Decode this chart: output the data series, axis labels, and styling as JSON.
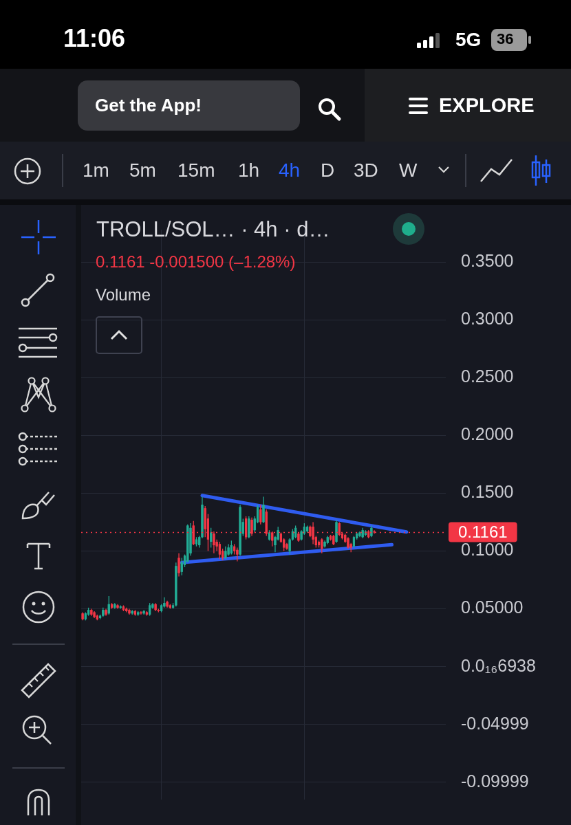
{
  "chart_data": {
    "type": "candlestick",
    "title": "TROLL/SOL… · 4h · d…",
    "annotations": [
      "11:06",
      "5G",
      "36",
      "Get the App!",
      "EXPLORE",
      "1m",
      "5m",
      "15m",
      "1h",
      "4h",
      "D",
      "3D",
      "W",
      "0.1161  -0.001500 (–1.28%)",
      "Volume"
    ],
    "categories": [
      null,
      null,
      null,
      null,
      null,
      null,
      null,
      null,
      null,
      null,
      null,
      null,
      null,
      null,
      null,
      null,
      null,
      null,
      null,
      null,
      null,
      null,
      null,
      null,
      null,
      null,
      null,
      null,
      null,
      null,
      null,
      null,
      null,
      null,
      null,
      null,
      null,
      null,
      null,
      null,
      null,
      null,
      null,
      null,
      null,
      null,
      null,
      null,
      null,
      null,
      null,
      null,
      null,
      null,
      null,
      null,
      null,
      null,
      null,
      null,
      null,
      null,
      null,
      null,
      null,
      null,
      null,
      null,
      null,
      null,
      null,
      null,
      null,
      null,
      null,
      null,
      null,
      null,
      null,
      null,
      null,
      null,
      null,
      null,
      null,
      null,
      null,
      null,
      null,
      null,
      null,
      null,
      null,
      null,
      null,
      null,
      null,
      null,
      null,
      null,
      null,
      null,
      null,
      null,
      null,
      null,
      null,
      null,
      null,
      null,
      null,
      null,
      null,
      null,
      null,
      null,
      null,
      null,
      null,
      null,
      null,
      null,
      null,
      null,
      null
    ],
    "ohlc": [
      [
        0.046,
        0.047,
        0.04,
        0.041
      ],
      [
        0.041,
        0.047,
        0.04,
        0.046
      ],
      [
        0.045,
        0.051,
        0.044,
        0.049
      ],
      [
        0.049,
        0.05,
        0.044,
        0.045
      ],
      [
        0.047,
        0.048,
        0.042,
        0.043
      ],
      [
        0.044,
        0.045,
        0.04,
        0.041
      ],
      [
        0.042,
        0.045,
        0.041,
        0.044
      ],
      [
        0.044,
        0.051,
        0.043,
        0.049
      ],
      [
        0.049,
        0.05,
        0.044,
        0.045
      ],
      [
        0.046,
        0.061,
        0.045,
        0.054
      ],
      [
        0.054,
        0.055,
        0.05,
        0.051
      ],
      [
        0.051,
        0.055,
        0.05,
        0.054
      ],
      [
        0.053,
        0.054,
        0.05,
        0.051
      ],
      [
        0.051,
        0.053,
        0.05,
        0.052
      ],
      [
        0.052,
        0.053,
        0.048,
        0.049
      ],
      [
        0.05,
        0.051,
        0.047,
        0.048
      ],
      [
        0.049,
        0.05,
        0.045,
        0.046
      ],
      [
        0.046,
        0.049,
        0.045,
        0.048
      ],
      [
        0.048,
        0.049,
        0.044,
        0.045
      ],
      [
        0.045,
        0.048,
        0.044,
        0.047
      ],
      [
        0.047,
        0.048,
        0.045,
        0.046
      ],
      [
        0.046,
        0.049,
        0.045,
        0.048
      ],
      [
        0.047,
        0.048,
        0.044,
        0.045
      ],
      [
        0.045,
        0.055,
        0.044,
        0.053
      ],
      [
        0.051,
        0.055,
        0.05,
        0.054
      ],
      [
        0.054,
        0.055,
        0.048,
        0.049
      ],
      [
        0.049,
        0.05,
        0.047,
        0.048
      ],
      [
        0.048,
        0.054,
        0.047,
        0.053
      ],
      [
        0.052,
        0.06,
        0.051,
        0.055
      ],
      [
        0.056,
        0.057,
        0.051,
        0.052
      ],
      [
        0.053,
        0.054,
        0.05,
        0.051
      ],
      [
        0.051,
        0.055,
        0.05,
        0.053
      ],
      [
        0.053,
        0.09,
        0.052,
        0.087
      ],
      [
        0.094,
        0.098,
        0.078,
        0.081
      ],
      [
        0.082,
        0.094,
        0.079,
        0.09
      ],
      [
        0.088,
        0.097,
        0.086,
        0.096
      ],
      [
        0.091,
        0.123,
        0.09,
        0.122
      ],
      [
        0.098,
        0.124,
        0.096,
        0.12
      ],
      [
        0.122,
        0.126,
        0.105,
        0.106
      ],
      [
        0.106,
        0.112,
        0.104,
        0.11
      ],
      [
        0.105,
        0.113,
        0.103,
        0.112
      ],
      [
        0.112,
        0.147,
        0.111,
        0.14
      ],
      [
        0.137,
        0.139,
        0.112,
        0.119
      ],
      [
        0.128,
        0.132,
        0.1,
        0.11
      ],
      [
        0.108,
        0.12,
        0.103,
        0.116
      ],
      [
        0.115,
        0.117,
        0.098,
        0.105
      ],
      [
        0.108,
        0.11,
        0.1,
        0.104
      ],
      [
        0.106,
        0.108,
        0.093,
        0.097
      ],
      [
        0.1,
        0.102,
        0.092,
        0.094
      ],
      [
        0.094,
        0.104,
        0.093,
        0.1
      ],
      [
        0.097,
        0.106,
        0.096,
        0.103
      ],
      [
        0.098,
        0.109,
        0.097,
        0.105
      ],
      [
        0.104,
        0.106,
        0.097,
        0.1
      ],
      [
        0.101,
        0.103,
        0.091,
        0.097
      ],
      [
        0.097,
        0.14,
        0.096,
        0.138
      ],
      [
        0.115,
        0.128,
        0.113,
        0.125
      ],
      [
        0.128,
        0.13,
        0.11,
        0.112
      ],
      [
        0.112,
        0.13,
        0.111,
        0.128
      ],
      [
        0.127,
        0.129,
        0.113,
        0.115
      ],
      [
        0.118,
        0.13,
        0.116,
        0.128
      ],
      [
        0.125,
        0.14,
        0.124,
        0.138
      ],
      [
        0.136,
        0.14,
        0.123,
        0.125
      ],
      [
        0.125,
        0.147,
        0.124,
        0.14
      ],
      [
        0.134,
        0.136,
        0.113,
        0.115
      ],
      [
        0.11,
        0.118,
        0.109,
        0.116
      ],
      [
        0.116,
        0.117,
        0.104,
        0.109
      ],
      [
        0.105,
        0.113,
        0.099,
        0.112
      ],
      [
        0.11,
        0.121,
        0.109,
        0.118
      ],
      [
        0.115,
        0.116,
        0.107,
        0.108
      ],
      [
        0.11,
        0.111,
        0.1,
        0.103
      ],
      [
        0.106,
        0.107,
        0.101,
        0.102
      ],
      [
        0.1,
        0.111,
        0.097,
        0.11
      ],
      [
        0.11,
        0.119,
        0.109,
        0.117
      ],
      [
        0.112,
        0.122,
        0.111,
        0.12
      ],
      [
        0.115,
        0.116,
        0.108,
        0.109
      ],
      [
        0.11,
        0.118,
        0.109,
        0.117
      ],
      [
        0.115,
        0.124,
        0.114,
        0.121
      ],
      [
        0.117,
        0.122,
        0.116,
        0.121
      ],
      [
        0.121,
        0.122,
        0.112,
        0.113
      ],
      [
        0.121,
        0.125,
        0.106,
        0.11
      ],
      [
        0.112,
        0.113,
        0.103,
        0.105
      ],
      [
        0.108,
        0.109,
        0.103,
        0.105
      ],
      [
        0.11,
        0.111,
        0.098,
        0.102
      ],
      [
        0.104,
        0.109,
        0.103,
        0.108
      ],
      [
        0.107,
        0.113,
        0.106,
        0.112
      ],
      [
        0.113,
        0.114,
        0.109,
        0.11
      ],
      [
        0.113,
        0.114,
        0.105,
        0.106
      ],
      [
        0.108,
        0.127,
        0.107,
        0.125
      ],
      [
        0.124,
        0.125,
        0.113,
        0.114
      ],
      [
        0.115,
        0.116,
        0.11,
        0.111
      ],
      [
        0.114,
        0.115,
        0.107,
        0.108
      ],
      [
        0.111,
        0.112,
        0.102,
        0.103
      ],
      [
        0.106,
        0.107,
        0.099,
        0.103
      ],
      [
        0.104,
        0.113,
        0.103,
        0.112
      ],
      [
        0.111,
        0.116,
        0.11,
        0.115
      ],
      [
        0.113,
        0.117,
        0.112,
        0.116
      ],
      [
        0.112,
        0.12,
        0.111,
        0.118
      ],
      [
        0.114,
        0.118,
        0.113,
        0.117
      ],
      [
        0.117,
        0.118,
        0.111,
        0.112
      ],
      [
        0.113,
        0.122,
        0.112,
        0.12
      ],
      [
        0.117,
        0.118,
        0.115,
        0.1161
      ],
      null,
      null,
      null,
      null,
      null,
      null,
      null,
      null,
      null,
      null,
      null,
      null,
      null,
      null,
      null,
      null,
      null,
      null,
      null,
      null,
      null,
      null,
      null,
      null
    ],
    "series": [
      {
        "type": "line",
        "color": "#2f5cf0",
        "values": [
          null,
          null,
          null,
          null,
          null,
          null,
          null,
          null,
          null,
          null,
          null,
          null,
          null,
          null,
          null,
          null,
          null,
          null,
          null,
          null,
          null,
          null,
          null,
          null,
          null,
          null,
          null,
          null,
          null,
          null,
          null,
          null,
          null,
          null,
          null,
          null,
          null,
          null,
          null,
          null,
          null,
          0.148,
          null,
          null,
          null,
          null,
          null,
          null,
          null,
          null,
          null,
          null,
          null,
          null,
          null,
          null,
          null,
          null,
          null,
          null,
          null,
          null,
          null,
          null,
          null,
          null,
          null,
          null,
          null,
          null,
          null,
          null,
          null,
          null,
          null,
          null,
          null,
          null,
          null,
          null,
          null,
          null,
          null,
          null,
          null,
          null,
          null,
          null,
          null,
          null,
          null,
          null,
          null,
          null,
          null,
          null,
          null,
          null,
          null,
          null,
          null,
          null,
          null,
          null,
          null,
          null,
          null,
          null,
          null,
          null,
          null,
          0.1165,
          null,
          null,
          null,
          null,
          null,
          null,
          null,
          null,
          null,
          null,
          null,
          null,
          null
        ]
      },
      {
        "type": "line",
        "color": "#2f5cf0",
        "values": [
          null,
          null,
          null,
          null,
          null,
          null,
          null,
          null,
          null,
          null,
          null,
          null,
          null,
          null,
          null,
          null,
          null,
          null,
          null,
          null,
          null,
          null,
          null,
          null,
          null,
          null,
          null,
          null,
          null,
          null,
          null,
          null,
          null,
          null,
          0.09,
          null,
          null,
          null,
          null,
          null,
          null,
          null,
          null,
          null,
          null,
          null,
          null,
          null,
          null,
          null,
          null,
          null,
          null,
          null,
          null,
          null,
          null,
          null,
          null,
          null,
          null,
          null,
          null,
          null,
          null,
          null,
          null,
          null,
          null,
          null,
          null,
          null,
          null,
          null,
          null,
          null,
          null,
          null,
          null,
          null,
          null,
          null,
          null,
          null,
          null,
          null,
          null,
          null,
          null,
          null,
          null,
          null,
          null,
          null,
          null,
          null,
          null,
          null,
          null,
          null,
          null,
          null,
          null,
          null,
          null,
          null,
          0.1055,
          null,
          null,
          null,
          null,
          null,
          null,
          null,
          null,
          null,
          null,
          null,
          null,
          null,
          null,
          null,
          null,
          null,
          null
        ]
      }
    ],
    "ylim": [
      -0.115,
      0.378
    ],
    "yticks": [
      {
        "value": 0.35,
        "label": "0.3500"
      },
      {
        "value": 0.3,
        "label": "0.3000"
      },
      {
        "value": 0.25,
        "label": "0.2500"
      },
      {
        "value": 0.2,
        "label": "0.2000"
      },
      {
        "value": 0.15,
        "label": "0.1500"
      },
      {
        "value": 0.1,
        "label": "0.1000"
      },
      {
        "value": 0.05,
        "label": "0.05000"
      },
      {
        "value": 0,
        "label": "0.0₁₆6938"
      },
      -0.04999,
      -0.09999
    ],
    "ref_lines": [
      {
        "axis": "y",
        "value": 0.1161,
        "label": "0.1161",
        "color": "#f23645",
        "line_style": "dotted"
      }
    ],
    "grid": true,
    "tick_labels": "y"
  }
}
